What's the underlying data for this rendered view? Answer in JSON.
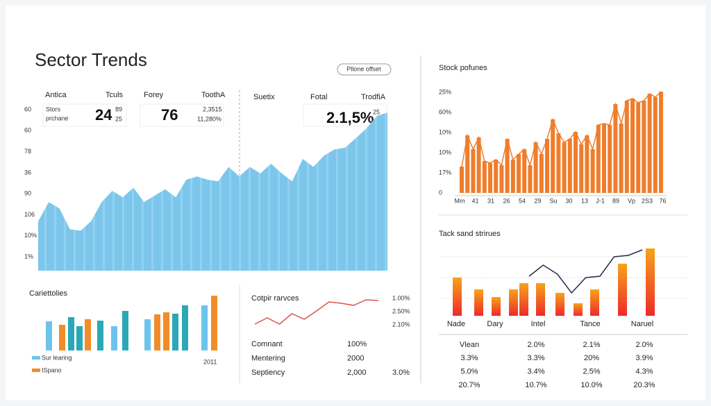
{
  "header": {
    "title": "Sector Trends",
    "button": "Pllone offset"
  },
  "kpi": {
    "headers": [
      "Antica",
      "Tculs",
      "Forey",
      "ToothA",
      "Suetix",
      "Fotal",
      "TrodfiA"
    ],
    "cards": [
      [
        "Stors",
        "prchane",
        "24",
        "89",
        "25"
      ],
      [
        "76",
        "2,3515",
        "11,280%"
      ],
      [
        "2.1,5%",
        "25"
      ]
    ]
  },
  "area_chart": {
    "type": "area",
    "y_axis_labels": [
      "60",
      "60",
      "78",
      "36",
      "90",
      "106",
      "10%",
      "1%"
    ],
    "values": [
      31,
      43,
      39,
      26,
      25,
      31,
      43,
      50,
      46,
      52,
      43,
      47,
      51,
      46,
      57,
      59,
      57,
      56,
      65,
      59,
      65,
      61,
      67,
      61,
      56,
      70,
      65,
      72,
      76,
      77,
      83,
      89,
      97,
      99
    ],
    "ylim": [
      0,
      100
    ],
    "color": "#7cc6ec"
  },
  "bar_chart": {
    "type": "bar",
    "title": "Cariettolies",
    "values": [
      42,
      37,
      48,
      35,
      45,
      43,
      35,
      57,
      45,
      52,
      55,
      53,
      65,
      65,
      79
    ],
    "colors": [
      "#6cc4ec",
      "#f28c28",
      "#2aa8b8",
      "#2aa8b8",
      "#f28c28",
      "#2aa8b8",
      "#6cc4ec",
      "#2aa8b8",
      "#6cc4ec",
      "#f28c28",
      "#f28c28",
      "#2aa8b8",
      "#2aa8b8",
      "#6cc4ec",
      "#f28c28"
    ],
    "ylim": [
      0,
      90
    ],
    "legend": [
      {
        "label": "Sur learing",
        "color": "#6cc4ec"
      },
      {
        "label": "ISpano",
        "color": "#f28c28"
      }
    ],
    "note": "2011"
  },
  "line_chart": {
    "type": "line",
    "title": "Cotpir rarvces",
    "values": [
      13,
      22,
      13,
      28,
      20,
      32,
      45,
      43,
      40,
      48,
      47
    ],
    "ylim": [
      0,
      60
    ],
    "color": "#d9534f",
    "side_labels": [
      "1.00%",
      "2.50%",
      "2.10%"
    ]
  },
  "left_table": {
    "rows": [
      [
        "Comnant",
        "100%"
      ],
      [
        "Mentering",
        "2000"
      ],
      [
        "Septiency",
        "2,000",
        "3.0%"
      ]
    ]
  },
  "stock_chart": {
    "type": "bar",
    "title": "Stock pofunes",
    "y_axis_labels": [
      "25%",
      "60%",
      "10%",
      "10%",
      "17%",
      "0"
    ],
    "x_labels": [
      "Mm",
      "41",
      "31",
      "26",
      "54",
      "29",
      "Su",
      "30",
      "13",
      "J-1",
      "89",
      "Vp",
      "2S3",
      "76"
    ],
    "values": [
      38,
      83,
      63,
      80,
      46,
      43,
      48,
      40,
      78,
      48,
      56,
      63,
      40,
      73,
      56,
      78,
      106,
      86,
      73,
      78,
      88,
      70,
      83,
      63,
      98,
      100,
      98,
      128,
      100,
      133,
      136,
      130,
      133,
      143,
      138,
      146
    ],
    "ylim": [
      0,
      160
    ],
    "color": "#ef7d2c"
  },
  "tack_chart": {
    "type": "bar_line",
    "title": "Tack sand strirues",
    "categories": [
      "Nade",
      "Dary",
      "Intel",
      "Tance",
      "Naruel"
    ],
    "values": [
      55,
      38,
      27,
      38,
      47,
      47,
      33,
      18,
      38,
      75,
      97
    ],
    "line_values": [
      57,
      73,
      60,
      33,
      55,
      57,
      85,
      87,
      95
    ],
    "ylim": [
      0,
      110
    ],
    "line_color": "#1f2d4a"
  },
  "right_table": {
    "rows": [
      [
        "Vlean",
        "2.0%",
        "2.1%",
        "2.0%"
      ],
      [
        "3.3%",
        "3.3%",
        "20%",
        "3.9%"
      ],
      [
        "5.0%",
        "3.4%",
        "2.5%",
        "4.3%"
      ],
      [
        "20.7%",
        "10.7%",
        "10.0%",
        "20.3%"
      ]
    ]
  }
}
